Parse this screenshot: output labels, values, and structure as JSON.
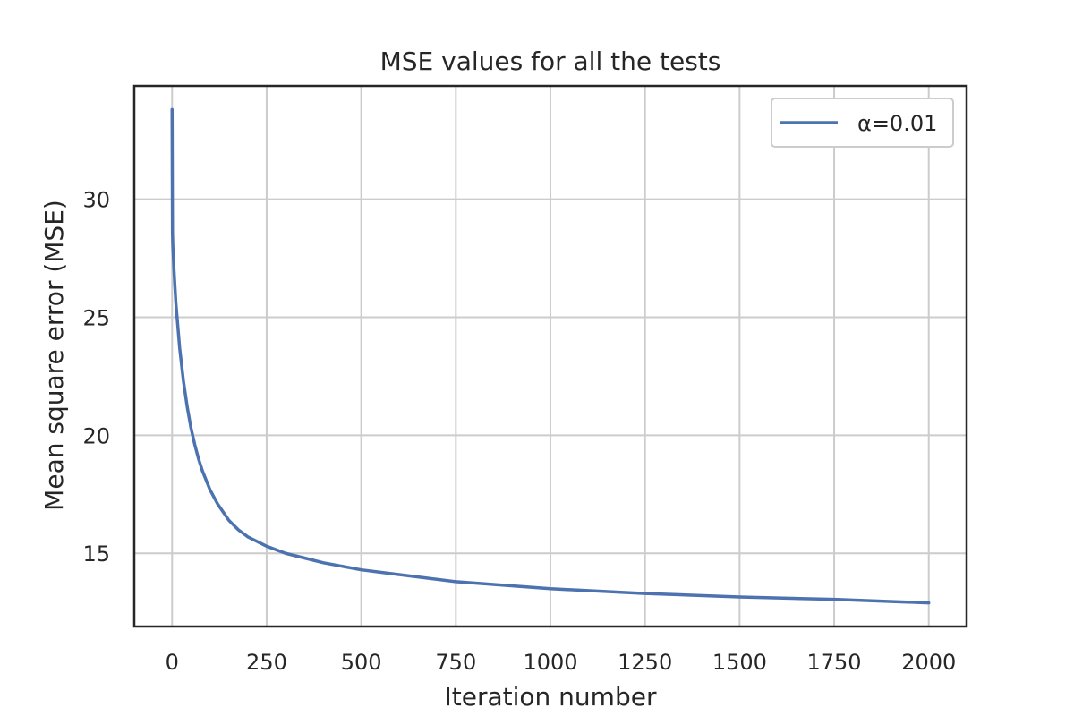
{
  "chart_data": {
    "type": "line",
    "title": "MSE values for all the tests",
    "xlabel": "Iteration number",
    "ylabel": "Mean square error (MSE)",
    "xlim": [
      -100,
      2100
    ],
    "ylim": [
      11.9,
      34.8
    ],
    "xticks": [
      0,
      250,
      500,
      750,
      1000,
      1250,
      1500,
      1750,
      2000
    ],
    "yticks": [
      15,
      20,
      25,
      30
    ],
    "grid": true,
    "legend_position": "top-right",
    "series": [
      {
        "name": "α=0.01",
        "color": "#4c72b0",
        "x": [
          0,
          1,
          2,
          5,
          10,
          20,
          30,
          40,
          50,
          60,
          70,
          80,
          100,
          120,
          150,
          175,
          200,
          250,
          300,
          350,
          400,
          500,
          600,
          750,
          1000,
          1250,
          1500,
          1750,
          2000
        ],
        "y": [
          33.8,
          28.6,
          28.0,
          27.0,
          25.6,
          23.7,
          22.3,
          21.2,
          20.3,
          19.6,
          19.0,
          18.5,
          17.7,
          17.1,
          16.4,
          16.0,
          15.7,
          15.3,
          15.0,
          14.8,
          14.6,
          14.3,
          14.1,
          13.8,
          13.5,
          13.3,
          13.15,
          13.05,
          12.9
        ]
      }
    ]
  }
}
